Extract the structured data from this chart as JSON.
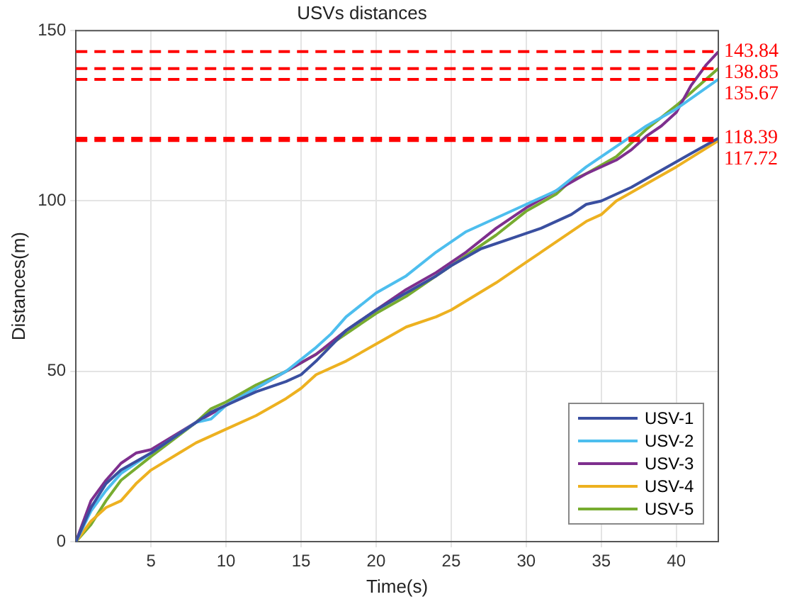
{
  "chart_data": {
    "type": "line",
    "title": "USVs distances",
    "xlabel": "Time(s)",
    "ylabel": "Distances(m)",
    "xlim": [
      0,
      42.8
    ],
    "xticks": [
      5,
      10,
      15,
      20,
      25,
      30,
      35,
      40
    ],
    "ylim": [
      0,
      150
    ],
    "yticks": [
      0,
      50,
      100,
      150
    ],
    "grid": true,
    "legend": "bottom right",
    "marker": "none",
    "line_style": "solid",
    "series": [
      {
        "name": "USV-1",
        "color": "#3a4fa0",
        "x": [
          0,
          1,
          2,
          3,
          5,
          8,
          9,
          10,
          12,
          14,
          15,
          16,
          18,
          20,
          22,
          24,
          25,
          27,
          29,
          31,
          33,
          34,
          35,
          37,
          39,
          41,
          42.8
        ],
        "values": [
          0,
          10,
          17,
          21,
          26,
          35,
          38,
          40,
          44,
          47,
          49,
          53,
          62,
          68,
          73,
          78,
          81,
          86,
          89,
          92,
          96,
          99,
          100,
          104,
          109,
          114,
          118.4
        ]
      },
      {
        "name": "USV-2",
        "color": "#4dbeee",
        "x": [
          0,
          1,
          2,
          3,
          5,
          8,
          9,
          10,
          12,
          14,
          16,
          17,
          18,
          20,
          22,
          24,
          26,
          28,
          30,
          32,
          34,
          36,
          38,
          40,
          42.8
        ],
        "values": [
          0,
          9,
          15,
          20,
          26,
          35,
          36,
          40,
          45,
          50,
          57,
          61,
          66,
          73,
          78,
          85,
          91,
          95,
          99,
          103,
          110,
          116,
          122,
          127,
          135.7
        ]
      },
      {
        "name": "USV-3",
        "color": "#7e2f8e",
        "x": [
          0,
          1,
          2,
          3,
          4,
          5,
          8,
          10,
          12,
          14,
          16,
          18,
          20,
          22,
          24,
          26,
          28,
          30,
          32,
          34,
          36,
          37,
          38,
          39,
          40,
          41,
          42,
          42.8
        ],
        "values": [
          0,
          12,
          18,
          23,
          26,
          27,
          35,
          40,
          45,
          50,
          55,
          62,
          68,
          74,
          79,
          85,
          92,
          98,
          103,
          108,
          112,
          115,
          119,
          122,
          126,
          134,
          140,
          143.8
        ]
      },
      {
        "name": "USV-4",
        "color": "#edb120",
        "x": [
          0,
          1,
          2,
          3,
          4,
          5,
          8,
          10,
          12,
          14,
          15,
          16,
          18,
          20,
          22,
          24,
          25,
          28,
          30,
          32,
          34,
          35,
          36,
          38,
          40,
          42.8
        ],
        "values": [
          0,
          6,
          10,
          12,
          17,
          21,
          29,
          33,
          37,
          42,
          45,
          49,
          53,
          58,
          63,
          66,
          68,
          76,
          82,
          88,
          94,
          96,
          100,
          105,
          110,
          117.7
        ]
      },
      {
        "name": "USV-5",
        "color": "#77ac30",
        "x": [
          0,
          1,
          2,
          3,
          5,
          8,
          9,
          10,
          12,
          14,
          16,
          18,
          20,
          22,
          24,
          26,
          28,
          30,
          32,
          33,
          34,
          36,
          38,
          40,
          42.8
        ],
        "values": [
          0,
          5,
          12,
          18,
          25,
          35,
          39,
          41,
          46,
          50,
          55,
          61,
          67,
          72,
          78,
          84,
          90,
          97,
          102,
          106,
          108,
          113,
          121,
          128,
          138.9
        ]
      }
    ],
    "ref_lines": [
      {
        "axis": "y",
        "value": 143.84,
        "label": "143.84",
        "color": "#ff0000",
        "line_style": "dashed"
      },
      {
        "axis": "y",
        "value": 138.85,
        "label": "138.85",
        "color": "#ff0000",
        "line_style": "dashed"
      },
      {
        "axis": "y",
        "value": 135.67,
        "label": "135.67",
        "color": "#ff0000",
        "line_style": "dashed"
      },
      {
        "axis": "y",
        "value": 118.39,
        "label": "118.39",
        "color": "#ff0000",
        "line_style": "dashed"
      },
      {
        "axis": "y",
        "value": 117.72,
        "label": "117.72",
        "color": "#ff0000",
        "line_style": "dashed"
      }
    ]
  }
}
